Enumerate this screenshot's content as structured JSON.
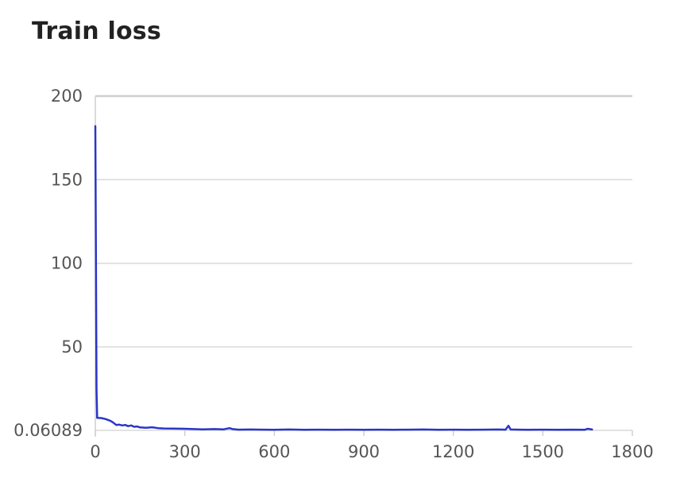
{
  "chart_data": {
    "type": "line",
    "title": "Train loss",
    "xlabel": "",
    "ylabel": "",
    "xlim": [
      0,
      1800
    ],
    "ylim": [
      0.06089,
      200
    ],
    "x_ticks": [
      0,
      300,
      600,
      900,
      1200,
      1500,
      1800
    ],
    "x_tick_labels": [
      "0",
      "300",
      "600",
      "900",
      "1200",
      "1500",
      "1800"
    ],
    "y_ticks": [
      0.06089,
      50,
      100,
      150,
      200
    ],
    "y_tick_labels": [
      "0.06089",
      "50",
      "100",
      "150",
      "200"
    ],
    "grid": true,
    "legend": "none",
    "series": [
      {
        "color": "#2a35c9",
        "points": [
          [
            0,
            182
          ],
          [
            2,
            100
          ],
          [
            4,
            25
          ],
          [
            6,
            7.5
          ],
          [
            20,
            7.4
          ],
          [
            35,
            6.8
          ],
          [
            50,
            5.8
          ],
          [
            60,
            4.7
          ],
          [
            70,
            3.3
          ],
          [
            80,
            3.5
          ],
          [
            90,
            3.0
          ],
          [
            100,
            3.3
          ],
          [
            110,
            2.6
          ],
          [
            120,
            3.0
          ],
          [
            130,
            2.2
          ],
          [
            140,
            2.4
          ],
          [
            150,
            1.8
          ],
          [
            170,
            1.6
          ],
          [
            190,
            1.9
          ],
          [
            210,
            1.4
          ],
          [
            230,
            1.2
          ],
          [
            260,
            1.1
          ],
          [
            300,
            1.0
          ],
          [
            330,
            0.8
          ],
          [
            360,
            0.7
          ],
          [
            400,
            0.8
          ],
          [
            430,
            0.7
          ],
          [
            450,
            1.4
          ],
          [
            460,
            0.8
          ],
          [
            480,
            0.5
          ],
          [
            520,
            0.6
          ],
          [
            560,
            0.5
          ],
          [
            600,
            0.4
          ],
          [
            650,
            0.6
          ],
          [
            700,
            0.4
          ],
          [
            750,
            0.5
          ],
          [
            800,
            0.4
          ],
          [
            850,
            0.5
          ],
          [
            900,
            0.4
          ],
          [
            950,
            0.5
          ],
          [
            1000,
            0.4
          ],
          [
            1050,
            0.5
          ],
          [
            1100,
            0.6
          ],
          [
            1150,
            0.4
          ],
          [
            1200,
            0.5
          ],
          [
            1250,
            0.4
          ],
          [
            1300,
            0.5
          ],
          [
            1350,
            0.6
          ],
          [
            1375,
            0.5
          ],
          [
            1385,
            2.8
          ],
          [
            1392,
            0.6
          ],
          [
            1420,
            0.5
          ],
          [
            1450,
            0.4
          ],
          [
            1500,
            0.5
          ],
          [
            1550,
            0.4
          ],
          [
            1600,
            0.5
          ],
          [
            1640,
            0.4
          ],
          [
            1650,
            1.0
          ],
          [
            1665,
            0.6
          ]
        ]
      }
    ]
  },
  "style": {
    "grid_color": "#d9d9d9",
    "axis_color": "#cfcfcf"
  }
}
